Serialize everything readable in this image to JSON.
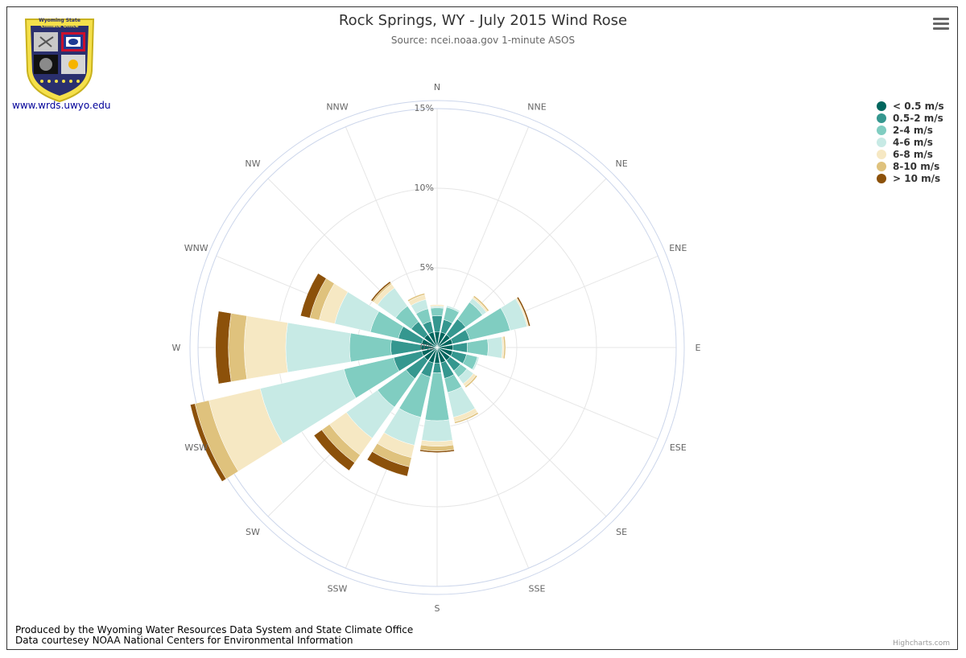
{
  "header": {
    "title": "Rock Springs, WY - July 2015 Wind Rose",
    "subtitle": "Source: ncei.noaa.gov 1-minute ASOS"
  },
  "logo": {
    "line1": "Wyoming State",
    "line2": "Climate Office",
    "link_text": "www.wrds.uwyo.edu"
  },
  "footer": {
    "line1": "Produced by the Wyoming Water Resources Data System and State Climate Office",
    "line2": "Data courtesey NOAA National Centers for Environmental Information"
  },
  "credits": "Highcharts.com",
  "chart_data": {
    "type": "bar",
    "polar": true,
    "stacking": "normal",
    "title": "Rock Springs, WY - July 2015 Wind Rose",
    "subtitle": "Source: ncei.noaa.gov 1-minute ASOS",
    "categories": [
      "N",
      "NNE",
      "NE",
      "ENE",
      "E",
      "ESE",
      "SE",
      "SSE",
      "S",
      "SSW",
      "SW",
      "WSW",
      "W",
      "WNW",
      "NW",
      "NNW"
    ],
    "y_tick_labels": [
      "0%",
      "5%",
      "10%",
      "15%"
    ],
    "ylim": [
      0,
      15
    ],
    "legend_position": "top-right",
    "series": [
      {
        "name": "< 0.5 m/s",
        "color": "#01665e",
        "values": [
          1.0,
          1.0,
          1.0,
          1.0,
          1.0,
          1.0,
          1.0,
          1.0,
          1.0,
          1.0,
          1.0,
          1.0,
          1.0,
          1.0,
          1.0,
          1.0
        ]
      },
      {
        "name": "0.5-2 m/s",
        "color": "#35978f",
        "values": [
          1.0,
          0.8,
          1.2,
          1.1,
          0.9,
          0.9,
          0.8,
          1.0,
          0.6,
          0.9,
          1.4,
          1.8,
          1.9,
          1.5,
          1.0,
          0.7
        ]
      },
      {
        "name": "2-4 m/s",
        "color": "#80cdc1",
        "values": [
          0.5,
          0.8,
          1.3,
          2.6,
          1.3,
          0.7,
          0.5,
          0.9,
          3.0,
          2.6,
          2.2,
          3.2,
          2.6,
          1.8,
          1.2,
          0.8
        ]
      },
      {
        "name": "4-6 m/s",
        "color": "#c7eae5",
        "values": [
          0.1,
          0.1,
          0.3,
          1.1,
          0.9,
          0.1,
          0.5,
          1.6,
          1.3,
          1.8,
          2.4,
          5.4,
          4.0,
          2.3,
          1.4,
          0.6
        ]
      },
      {
        "name": "6-8 m/s",
        "color": "#f6e8c3",
        "values": [
          0.1,
          0.0,
          0.1,
          0.1,
          0.1,
          0.0,
          0.2,
          0.3,
          0.3,
          0.8,
          1.3,
          3.3,
          2.6,
          1.0,
          0.3,
          0.3
        ]
      },
      {
        "name": "8-10 m/s",
        "color": "#dfc27d",
        "values": [
          0.0,
          0.0,
          0.1,
          0.0,
          0.1,
          0.0,
          0.1,
          0.1,
          0.3,
          0.6,
          0.6,
          0.9,
          1.0,
          0.6,
          0.1,
          0.1
        ]
      },
      {
        "name": "> 10 m/s",
        "color": "#8c510a",
        "values": [
          0.0,
          0.0,
          0.0,
          0.1,
          0.0,
          0.0,
          0.0,
          0.0,
          0.1,
          0.6,
          0.6,
          0.3,
          0.8,
          0.6,
          0.1,
          0.0
        ]
      }
    ]
  }
}
